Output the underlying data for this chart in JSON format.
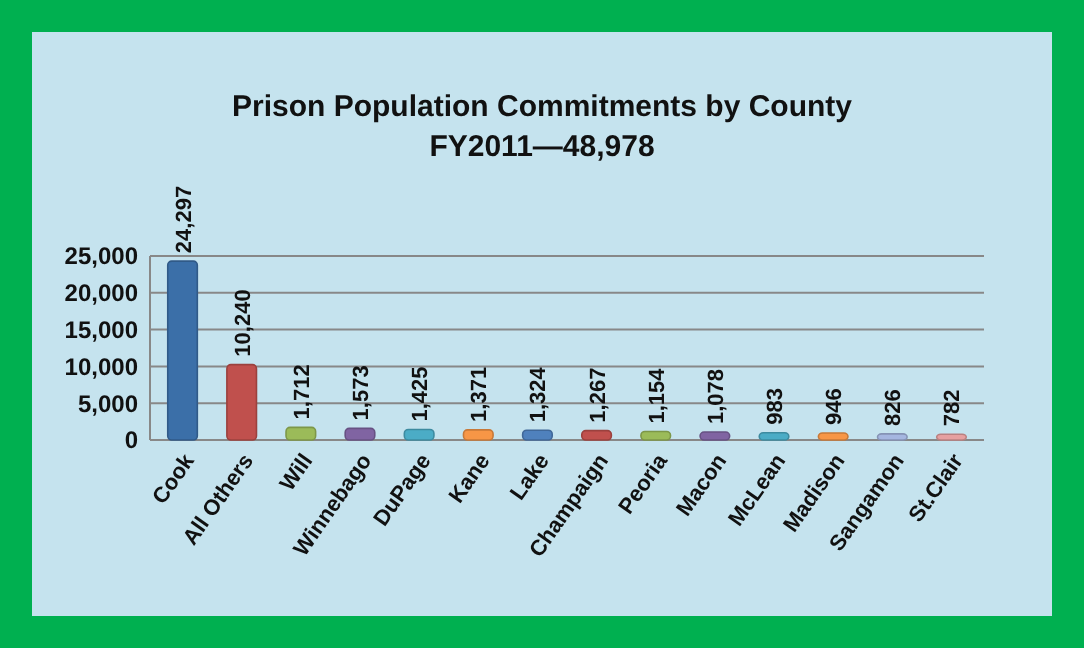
{
  "chart_data": {
    "type": "bar",
    "title": "Prison Population Commitments by County",
    "subtitle": "FY2011—48,978",
    "categories": [
      "Cook",
      "All Others",
      "Will",
      "Winnebago",
      "DuPage",
      "Kane",
      "Lake",
      "Champaign",
      "Peoria",
      "Macon",
      "McLean",
      "Madison",
      "Sangamon",
      "St.Clair"
    ],
    "values": [
      24297,
      10240,
      1712,
      1573,
      1425,
      1371,
      1324,
      1267,
      1154,
      1078,
      983,
      946,
      826,
      782
    ],
    "colors": [
      "#3b6fa8",
      "#c0504d",
      "#9bbb59",
      "#8064a2",
      "#4bacc6",
      "#f79646",
      "#4f81bd",
      "#c0504d",
      "#9bbb59",
      "#8064a2",
      "#4bacc6",
      "#f79646",
      "#a5b6e0",
      "#e6a0a0"
    ],
    "value_labels": [
      "24,297",
      "10,240",
      "1,712",
      "1,573",
      "1,425",
      "1,371",
      "1,324",
      "1,267",
      "1,154",
      "1,078",
      "983",
      "946",
      "826",
      "782"
    ],
    "ylim": [
      0,
      25000
    ],
    "yticks": [
      {
        "value": 0,
        "label": "0"
      },
      {
        "value": 5000,
        "label": "5,000"
      },
      {
        "value": 10000,
        "label": "10,000"
      },
      {
        "value": 15000,
        "label": "15,000"
      },
      {
        "value": 20000,
        "label": "20,000"
      },
      {
        "value": 25000,
        "label": "25,000"
      }
    ],
    "grid": "y"
  }
}
